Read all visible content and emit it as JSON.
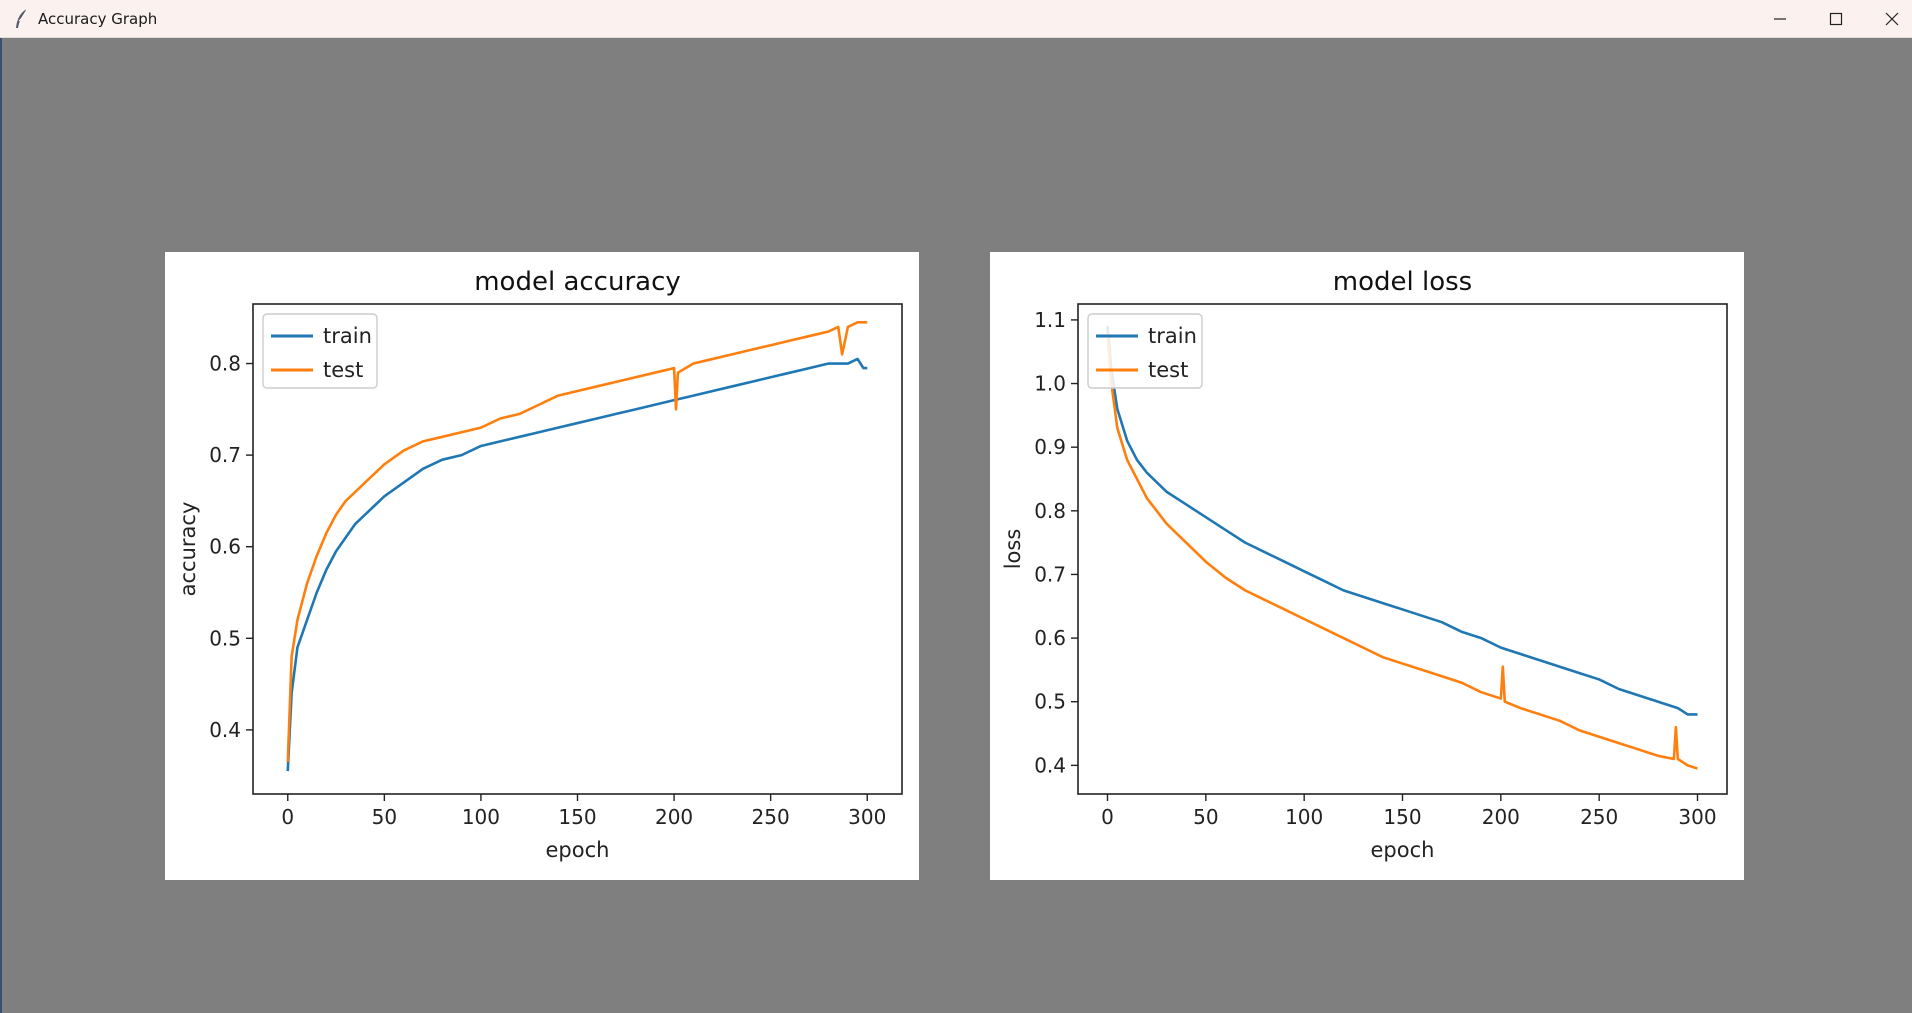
{
  "window": {
    "title": "Accuracy Graph",
    "icon": "feather-icon",
    "controls": [
      "minimize-icon",
      "maximize-icon",
      "close-icon"
    ]
  },
  "colors": {
    "background": "#7f7f7f",
    "train": "#1f77b4",
    "test": "#ff7f0e"
  },
  "chart_data": [
    {
      "type": "line",
      "title": "model accuracy",
      "xlabel": "epoch",
      "ylabel": "accuracy",
      "xlim": [
        -18,
        318
      ],
      "ylim": [
        0.33,
        0.865
      ],
      "xticks": [
        0,
        50,
        100,
        150,
        200,
        250,
        300
      ],
      "yticks": [
        0.4,
        0.5,
        0.6,
        0.7,
        0.8
      ],
      "legend_position": "top-left",
      "grid": false,
      "series": [
        {
          "name": "train",
          "x": [
            0,
            2,
            5,
            10,
            15,
            20,
            25,
            30,
            35,
            40,
            45,
            50,
            60,
            70,
            80,
            90,
            100,
            110,
            120,
            130,
            140,
            150,
            160,
            170,
            180,
            190,
            200,
            210,
            220,
            230,
            240,
            250,
            260,
            270,
            280,
            290,
            295,
            298,
            300
          ],
          "y": [
            0.355,
            0.44,
            0.49,
            0.52,
            0.55,
            0.575,
            0.595,
            0.61,
            0.625,
            0.635,
            0.645,
            0.655,
            0.67,
            0.685,
            0.695,
            0.7,
            0.71,
            0.715,
            0.72,
            0.725,
            0.73,
            0.735,
            0.74,
            0.745,
            0.75,
            0.755,
            0.76,
            0.765,
            0.77,
            0.775,
            0.78,
            0.785,
            0.79,
            0.795,
            0.8,
            0.8,
            0.805,
            0.795,
            0.795
          ]
        },
        {
          "name": "test",
          "x": [
            0,
            2,
            5,
            10,
            15,
            20,
            25,
            30,
            35,
            40,
            45,
            50,
            60,
            70,
            80,
            90,
            100,
            110,
            120,
            130,
            140,
            150,
            160,
            170,
            180,
            190,
            200,
            201,
            202,
            210,
            220,
            230,
            240,
            250,
            260,
            270,
            280,
            285,
            287,
            290,
            295,
            300
          ],
          "y": [
            0.365,
            0.48,
            0.52,
            0.56,
            0.59,
            0.615,
            0.635,
            0.65,
            0.66,
            0.67,
            0.68,
            0.69,
            0.705,
            0.715,
            0.72,
            0.725,
            0.73,
            0.74,
            0.745,
            0.755,
            0.765,
            0.77,
            0.775,
            0.78,
            0.785,
            0.79,
            0.795,
            0.75,
            0.79,
            0.8,
            0.805,
            0.81,
            0.815,
            0.82,
            0.825,
            0.83,
            0.835,
            0.84,
            0.81,
            0.84,
            0.845,
            0.845
          ]
        }
      ]
    },
    {
      "type": "line",
      "title": "model loss",
      "xlabel": "epoch",
      "ylabel": "loss",
      "xlim": [
        -15,
        315
      ],
      "ylim": [
        0.355,
        1.125
      ],
      "xticks": [
        0,
        50,
        100,
        150,
        200,
        250,
        300
      ],
      "yticks": [
        0.4,
        0.5,
        0.6,
        0.7,
        0.8,
        0.9,
        1.0,
        1.1
      ],
      "legend_position": "top-left",
      "grid": false,
      "series": [
        {
          "name": "train",
          "x": [
            0,
            2,
            5,
            10,
            15,
            20,
            25,
            30,
            40,
            50,
            60,
            70,
            80,
            90,
            100,
            110,
            120,
            130,
            140,
            150,
            160,
            170,
            180,
            190,
            200,
            210,
            220,
            230,
            240,
            250,
            260,
            270,
            280,
            290,
            295,
            300
          ],
          "y": [
            1.09,
            1.02,
            0.96,
            0.91,
            0.88,
            0.86,
            0.845,
            0.83,
            0.81,
            0.79,
            0.77,
            0.75,
            0.735,
            0.72,
            0.705,
            0.69,
            0.675,
            0.665,
            0.655,
            0.645,
            0.635,
            0.625,
            0.61,
            0.6,
            0.585,
            0.575,
            0.565,
            0.555,
            0.545,
            0.535,
            0.52,
            0.51,
            0.5,
            0.49,
            0.48,
            0.48
          ]
        },
        {
          "name": "test",
          "x": [
            0,
            2,
            5,
            10,
            15,
            20,
            25,
            30,
            40,
            50,
            60,
            70,
            80,
            90,
            100,
            110,
            120,
            130,
            140,
            150,
            160,
            170,
            180,
            190,
            200,
            201,
            202,
            210,
            220,
            230,
            240,
            250,
            260,
            270,
            280,
            288,
            289,
            290,
            295,
            300
          ],
          "y": [
            1.08,
            1.0,
            0.93,
            0.88,
            0.85,
            0.82,
            0.8,
            0.78,
            0.75,
            0.72,
            0.695,
            0.675,
            0.66,
            0.645,
            0.63,
            0.615,
            0.6,
            0.585,
            0.57,
            0.56,
            0.55,
            0.54,
            0.53,
            0.515,
            0.505,
            0.555,
            0.5,
            0.49,
            0.48,
            0.47,
            0.455,
            0.445,
            0.435,
            0.425,
            0.415,
            0.41,
            0.46,
            0.41,
            0.4,
            0.395
          ]
        }
      ]
    }
  ]
}
